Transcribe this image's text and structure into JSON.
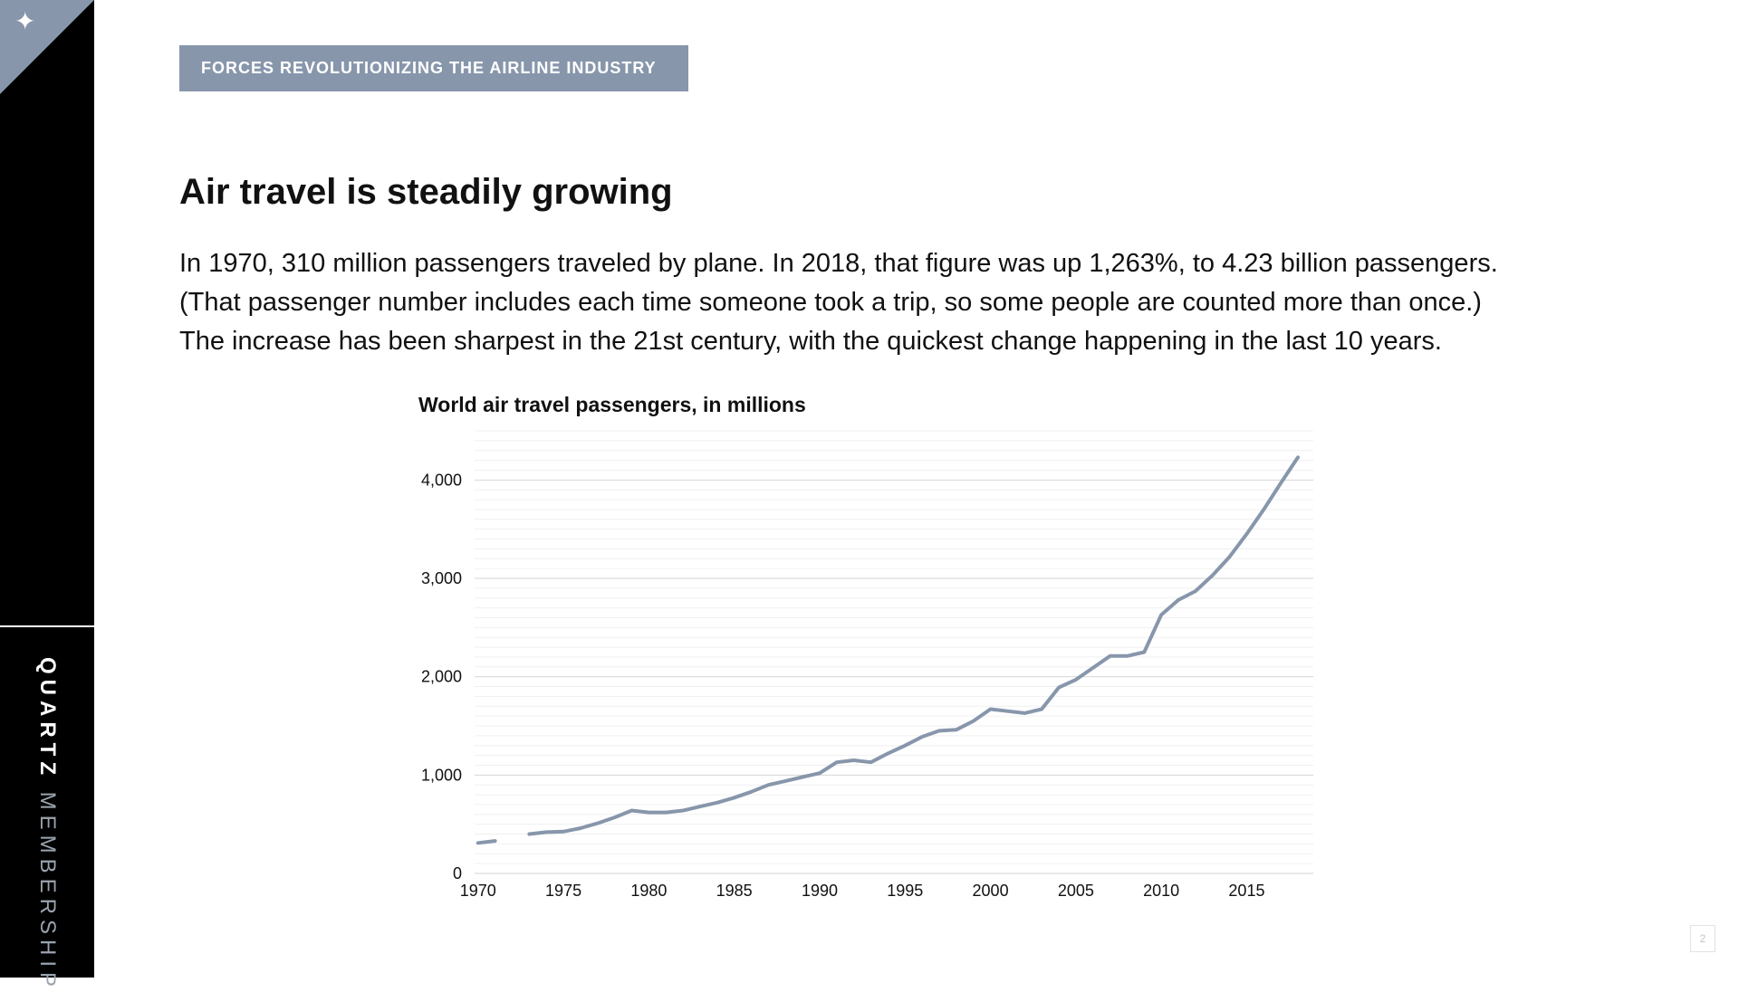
{
  "sidebar": {
    "corner_icon": "sparkle-icon",
    "brand_bold": "QUARTZ",
    "brand_light": "MEMBERSHIP"
  },
  "banner": {
    "label": "FORCES REVOLUTIONIZING THE AIRLINE INDUSTRY"
  },
  "headline": "Air travel is steadily growing",
  "body": [
    "In 1970, 310 million passengers traveled by plane. In 2018, that figure was up 1,263%, to 4.23 billion passengers.",
    "(That passenger number includes each time someone took a trip, so some people are counted more than once.)",
    "The increase has been sharpest in the 21st century, with the quickest change happening in the last 10 years."
  ],
  "page_number": "2",
  "colors": {
    "accent": "#8796ab",
    "sidebar": "#000000",
    "line": "#8796ab"
  },
  "chart_data": {
    "type": "line",
    "title": "World air travel passengers, in millions",
    "xlabel": "",
    "ylabel": "",
    "xlim": [
      1970,
      2018
    ],
    "ylim": [
      0,
      4500
    ],
    "y_ticks": [
      0,
      1000,
      2000,
      3000,
      4000
    ],
    "y_tick_labels": [
      "0",
      "1,000",
      "2,000",
      "3,000",
      "4,000"
    ],
    "x_ticks": [
      1970,
      1975,
      1980,
      1985,
      1990,
      1995,
      2000,
      2005,
      2010,
      2015
    ],
    "x_tick_labels": [
      "1970",
      "1975",
      "1980",
      "1985",
      "1990",
      "1995",
      "2000",
      "2005",
      "2010",
      "2015"
    ],
    "grid": true,
    "series": [
      {
        "x": [
          1970,
          1971,
          1972,
          1973,
          1974,
          1975,
          1976,
          1977,
          1978,
          1979,
          1980,
          1981,
          1982,
          1983,
          1984,
          1985,
          1986,
          1987,
          1988,
          1989,
          1990,
          1991,
          1992,
          1993,
          1994,
          1995,
          1996,
          1997,
          1998,
          1999,
          2000,
          2001,
          2002,
          2003,
          2004,
          2005,
          2006,
          2007,
          2008,
          2009,
          2010,
          2011,
          2012,
          2013,
          2014,
          2015,
          2016,
          2017,
          2018
        ],
        "values": [
          310,
          330,
          null,
          400,
          420,
          425,
          460,
          510,
          570,
          640,
          620,
          620,
          640,
          680,
          720,
          770,
          830,
          900,
          940,
          980,
          1020,
          1130,
          1150,
          1130,
          1220,
          1300,
          1390,
          1450,
          1460,
          1550,
          1670,
          1650,
          1630,
          1670,
          1890,
          1970,
          2090,
          2210,
          2210,
          2250,
          2630,
          2780,
          2870,
          3030,
          3220,
          3450,
          3700,
          3970,
          4230
        ]
      }
    ]
  }
}
